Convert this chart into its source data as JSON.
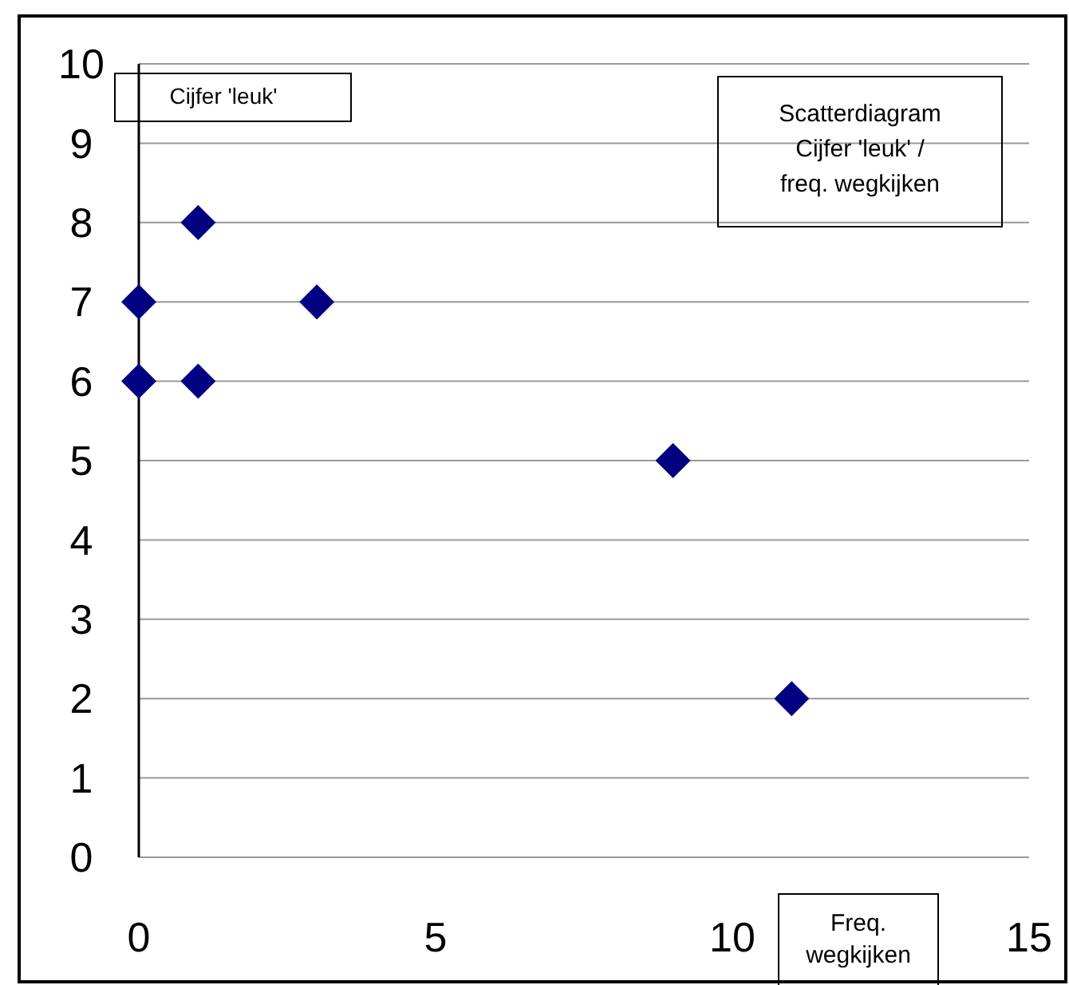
{
  "chart_data": {
    "type": "scatter",
    "title": "Scatterdiagram Cijfer 'leuk' / freq. wegkijken",
    "xlabel": "Freq. wegkijken",
    "ylabel": "Cijfer 'leuk'",
    "x": [
      0,
      0,
      1,
      1,
      3,
      9,
      11
    ],
    "series": [
      {
        "color": "#000080",
        "values": [
          7,
          6,
          8,
          6,
          7,
          5,
          2
        ]
      }
    ],
    "xlim": [
      0,
      15
    ],
    "ylim": [
      0,
      10
    ],
    "xticks": [
      0,
      5,
      10,
      15
    ],
    "yticks": [
      0,
      1,
      2,
      3,
      4,
      5,
      6,
      7,
      8,
      9,
      10
    ],
    "grid": "y",
    "marker": "diamond"
  }
}
